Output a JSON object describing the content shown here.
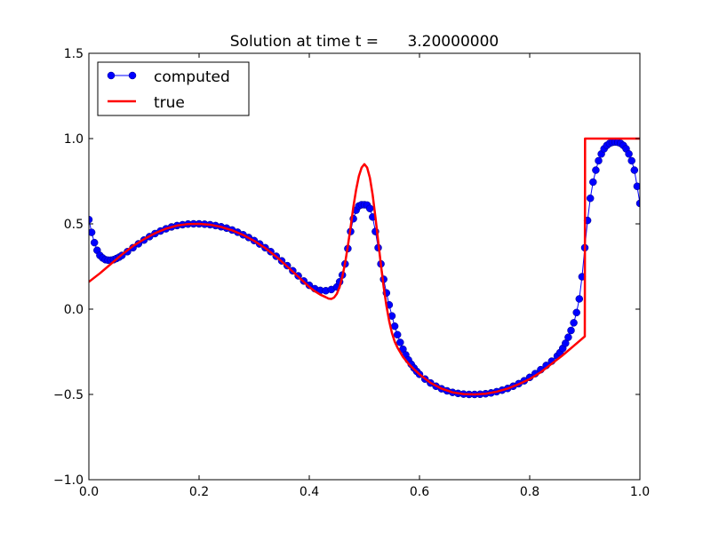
{
  "chart_data": {
    "type": "line",
    "title": "Solution at time t =      3.20000000",
    "xlabel": "",
    "ylabel": "",
    "xlim": [
      0.0,
      1.0
    ],
    "ylim": [
      -1.0,
      1.5
    ],
    "x_ticks": [
      0.0,
      0.2,
      0.4,
      0.6,
      0.8,
      1.0
    ],
    "x_tick_labels": [
      "0.0",
      "0.2",
      "0.4",
      "0.6",
      "0.8",
      "1.0"
    ],
    "y_ticks": [
      -1.0,
      -0.5,
      0.0,
      0.5,
      1.0,
      1.5
    ],
    "y_tick_labels": [
      "−1.0",
      "−0.5",
      "0.0",
      "0.5",
      "1.0",
      "1.5"
    ],
    "grid": false,
    "legend_position": "top-left",
    "series": [
      {
        "name": "computed",
        "color": "#0000ff",
        "style": "line-with-circle-markers",
        "points": [
          [
            0.0,
            0.525
          ],
          [
            0.005,
            0.45
          ],
          [
            0.01,
            0.39
          ],
          [
            0.015,
            0.345
          ],
          [
            0.02,
            0.315
          ],
          [
            0.025,
            0.3
          ],
          [
            0.03,
            0.29
          ],
          [
            0.035,
            0.287
          ],
          [
            0.04,
            0.287
          ],
          [
            0.045,
            0.29
          ],
          [
            0.05,
            0.297
          ],
          [
            0.055,
            0.305
          ],
          [
            0.06,
            0.315
          ],
          [
            0.07,
            0.337
          ],
          [
            0.08,
            0.36
          ],
          [
            0.09,
            0.383
          ],
          [
            0.1,
            0.405
          ],
          [
            0.11,
            0.425
          ],
          [
            0.12,
            0.443
          ],
          [
            0.13,
            0.458
          ],
          [
            0.14,
            0.471
          ],
          [
            0.15,
            0.482
          ],
          [
            0.16,
            0.49
          ],
          [
            0.17,
            0.495
          ],
          [
            0.18,
            0.499
          ],
          [
            0.19,
            0.5
          ],
          [
            0.2,
            0.5
          ],
          [
            0.21,
            0.498
          ],
          [
            0.22,
            0.495
          ],
          [
            0.23,
            0.49
          ],
          [
            0.24,
            0.483
          ],
          [
            0.25,
            0.475
          ],
          [
            0.26,
            0.464
          ],
          [
            0.27,
            0.451
          ],
          [
            0.28,
            0.436
          ],
          [
            0.29,
            0.42
          ],
          [
            0.3,
            0.402
          ],
          [
            0.31,
            0.382
          ],
          [
            0.32,
            0.36
          ],
          [
            0.33,
            0.337
          ],
          [
            0.34,
            0.31
          ],
          [
            0.35,
            0.283
          ],
          [
            0.36,
            0.255
          ],
          [
            0.37,
            0.225
          ],
          [
            0.38,
            0.195
          ],
          [
            0.39,
            0.165
          ],
          [
            0.4,
            0.14
          ],
          [
            0.41,
            0.12
          ],
          [
            0.42,
            0.11
          ],
          [
            0.43,
            0.108
          ],
          [
            0.44,
            0.115
          ],
          [
            0.45,
            0.13
          ],
          [
            0.455,
            0.16
          ],
          [
            0.46,
            0.2
          ],
          [
            0.465,
            0.265
          ],
          [
            0.47,
            0.355
          ],
          [
            0.475,
            0.455
          ],
          [
            0.48,
            0.53
          ],
          [
            0.485,
            0.58
          ],
          [
            0.49,
            0.605
          ],
          [
            0.495,
            0.612
          ],
          [
            0.5,
            0.612
          ],
          [
            0.505,
            0.61
          ],
          [
            0.51,
            0.59
          ],
          [
            0.515,
            0.54
          ],
          [
            0.52,
            0.455
          ],
          [
            0.525,
            0.36
          ],
          [
            0.53,
            0.265
          ],
          [
            0.535,
            0.175
          ],
          [
            0.54,
            0.095
          ],
          [
            0.545,
            0.025
          ],
          [
            0.55,
            -0.04
          ],
          [
            0.555,
            -0.1
          ],
          [
            0.56,
            -0.15
          ],
          [
            0.565,
            -0.195
          ],
          [
            0.57,
            -0.235
          ],
          [
            0.575,
            -0.268
          ],
          [
            0.58,
            -0.298
          ],
          [
            0.585,
            -0.323
          ],
          [
            0.59,
            -0.345
          ],
          [
            0.595,
            -0.365
          ],
          [
            0.6,
            -0.382
          ],
          [
            0.61,
            -0.41
          ],
          [
            0.62,
            -0.433
          ],
          [
            0.63,
            -0.452
          ],
          [
            0.64,
            -0.467
          ],
          [
            0.65,
            -0.479
          ],
          [
            0.66,
            -0.488
          ],
          [
            0.67,
            -0.494
          ],
          [
            0.68,
            -0.498
          ],
          [
            0.69,
            -0.5
          ],
          [
            0.7,
            -0.5
          ],
          [
            0.71,
            -0.499
          ],
          [
            0.72,
            -0.496
          ],
          [
            0.73,
            -0.491
          ],
          [
            0.74,
            -0.484
          ],
          [
            0.75,
            -0.475
          ],
          [
            0.76,
            -0.465
          ],
          [
            0.77,
            -0.452
          ],
          [
            0.78,
            -0.437
          ],
          [
            0.79,
            -0.42
          ],
          [
            0.8,
            -0.4
          ],
          [
            0.81,
            -0.378
          ],
          [
            0.82,
            -0.355
          ],
          [
            0.83,
            -0.33
          ],
          [
            0.84,
            -0.305
          ],
          [
            0.85,
            -0.275
          ],
          [
            0.855,
            -0.255
          ],
          [
            0.86,
            -0.23
          ],
          [
            0.865,
            -0.2
          ],
          [
            0.87,
            -0.165
          ],
          [
            0.875,
            -0.125
          ],
          [
            0.88,
            -0.08
          ],
          [
            0.885,
            -0.02
          ],
          [
            0.89,
            0.06
          ],
          [
            0.895,
            0.19
          ],
          [
            0.9,
            0.36
          ],
          [
            0.905,
            0.52
          ],
          [
            0.91,
            0.65
          ],
          [
            0.915,
            0.745
          ],
          [
            0.92,
            0.815
          ],
          [
            0.925,
            0.87
          ],
          [
            0.93,
            0.91
          ],
          [
            0.935,
            0.94
          ],
          [
            0.94,
            0.96
          ],
          [
            0.945,
            0.972
          ],
          [
            0.95,
            0.978
          ],
          [
            0.955,
            0.98
          ],
          [
            0.96,
            0.978
          ],
          [
            0.965,
            0.972
          ],
          [
            0.97,
            0.96
          ],
          [
            0.975,
            0.94
          ],
          [
            0.98,
            0.91
          ],
          [
            0.985,
            0.87
          ],
          [
            0.99,
            0.815
          ],
          [
            0.995,
            0.72
          ],
          [
            1.0,
            0.62
          ]
        ]
      },
      {
        "name": "true",
        "color": "#ff0000",
        "style": "solid-line",
        "points": [
          [
            0.0,
            0.16
          ],
          [
            0.02,
            0.21
          ],
          [
            0.04,
            0.265
          ],
          [
            0.06,
            0.32
          ],
          [
            0.08,
            0.37
          ],
          [
            0.1,
            0.41
          ],
          [
            0.12,
            0.445
          ],
          [
            0.14,
            0.472
          ],
          [
            0.16,
            0.49
          ],
          [
            0.18,
            0.499
          ],
          [
            0.2,
            0.5
          ],
          [
            0.22,
            0.495
          ],
          [
            0.24,
            0.482
          ],
          [
            0.26,
            0.462
          ],
          [
            0.28,
            0.435
          ],
          [
            0.3,
            0.4
          ],
          [
            0.32,
            0.358
          ],
          [
            0.34,
            0.308
          ],
          [
            0.36,
            0.25
          ],
          [
            0.38,
            0.19
          ],
          [
            0.4,
            0.13
          ],
          [
            0.41,
            0.105
          ],
          [
            0.42,
            0.085
          ],
          [
            0.43,
            0.07
          ],
          [
            0.435,
            0.062
          ],
          [
            0.44,
            0.06
          ],
          [
            0.445,
            0.068
          ],
          [
            0.45,
            0.09
          ],
          [
            0.455,
            0.13
          ],
          [
            0.46,
            0.19
          ],
          [
            0.465,
            0.27
          ],
          [
            0.47,
            0.37
          ],
          [
            0.475,
            0.48
          ],
          [
            0.48,
            0.6
          ],
          [
            0.485,
            0.7
          ],
          [
            0.49,
            0.78
          ],
          [
            0.495,
            0.83
          ],
          [
            0.5,
            0.85
          ],
          [
            0.505,
            0.83
          ],
          [
            0.51,
            0.77
          ],
          [
            0.515,
            0.67
          ],
          [
            0.52,
            0.54
          ],
          [
            0.525,
            0.4
          ],
          [
            0.53,
            0.26
          ],
          [
            0.535,
            0.13
          ],
          [
            0.54,
            0.02
          ],
          [
            0.545,
            -0.07
          ],
          [
            0.55,
            -0.14
          ],
          [
            0.555,
            -0.19
          ],
          [
            0.56,
            -0.225
          ],
          [
            0.57,
            -0.28
          ],
          [
            0.58,
            -0.32
          ],
          [
            0.59,
            -0.352
          ],
          [
            0.6,
            -0.382
          ],
          [
            0.62,
            -0.432
          ],
          [
            0.64,
            -0.466
          ],
          [
            0.66,
            -0.488
          ],
          [
            0.68,
            -0.498
          ],
          [
            0.7,
            -0.5
          ],
          [
            0.72,
            -0.496
          ],
          [
            0.74,
            -0.484
          ],
          [
            0.76,
            -0.466
          ],
          [
            0.78,
            -0.44
          ],
          [
            0.8,
            -0.41
          ],
          [
            0.82,
            -0.37
          ],
          [
            0.84,
            -0.32
          ],
          [
            0.86,
            -0.27
          ],
          [
            0.88,
            -0.215
          ],
          [
            0.9,
            -0.16
          ],
          [
            0.9005,
            1.0
          ],
          [
            1.0,
            1.0
          ]
        ]
      }
    ]
  }
}
